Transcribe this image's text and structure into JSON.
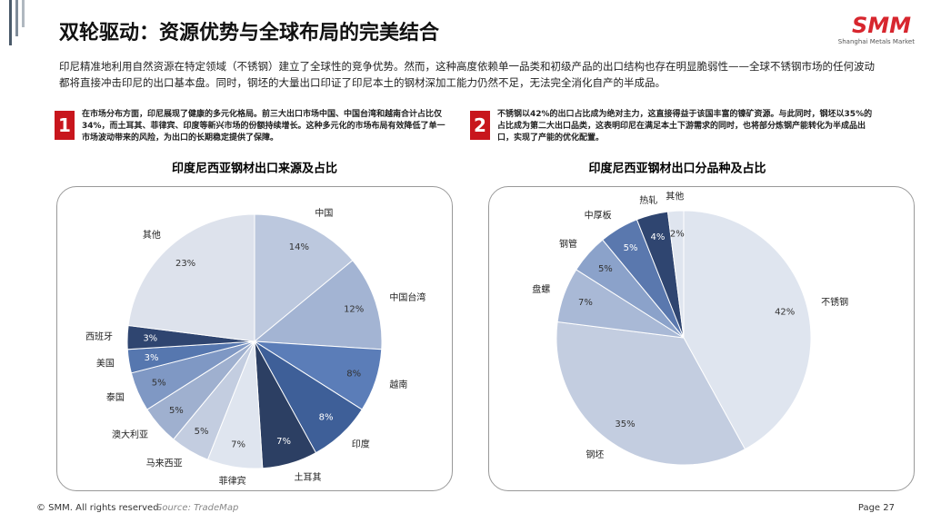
{
  "slide": {
    "title": "双轮驱动：资源优势与全球布局的完美结合",
    "logo": "SMM",
    "logo_sub": "Shanghai Metals Market",
    "intro": "印尼精准地利用自然资源在特定领域（不锈钢）建立了全球性的竞争优势。然而，这种高度依赖单一品类和初级产品的出口结构也存在明显脆弱性——全球不锈钢市场的任何波动都将直接冲击印尼的出口基本盘。同时，钢坯的大量出口印证了印尼本土的钢材深加工能力仍然不足，无法完全消化自产的半成品。",
    "points": [
      {
        "number": "1",
        "text": "在市场分布方面，印尼展现了健康的多元化格局。前三大出口市场中国、中国台湾和越南合计占比仅34%，而土耳其、菲律宾、印度等新兴市场的份额持续增长。这种多元化的市场布局有效降低了单一市场波动带来的风险，为出口的长期稳定提供了保障。"
      },
      {
        "number": "2",
        "text": "不锈钢以42%的出口占比成为绝对主力，这直接得益于该国丰富的镍矿资源。与此同时，钢坯以35%的占比成为第二大出口品类，这表明印尼在满足本土下游需求的同时，也将部分炼钢产能转化为半成品出口，实现了产能的优化配置。"
      }
    ],
    "footer": {
      "copyright": "© SMM. All rights reserved.",
      "source": "Source:  TradeMap",
      "page": "Page 27"
    }
  },
  "chart_data": [
    {
      "type": "pie",
      "title": "印度尼西亚钢材出口来源及占比",
      "categories": [
        "中国",
        "中国台湾",
        "越南",
        "印度",
        "土耳其",
        "菲律宾",
        "马来西亚",
        "澳大利亚",
        "泰国",
        "美国",
        "西班牙",
        "其他"
      ],
      "values": [
        14,
        12,
        8,
        8,
        7,
        7,
        5,
        5,
        5,
        3,
        3,
        23
      ],
      "value_labels": [
        "14%",
        "12%",
        "8%",
        "8%",
        "7%",
        "7%",
        "5%",
        "5%",
        "5%",
        "3%",
        "3%",
        "23%"
      ],
      "colors": [
        "#bcc8de",
        "#a3b4d3",
        "#5b7db8",
        "#3e5f98",
        "#2c3f63",
        "#dfe5ef",
        "#c3cde0",
        "#9fb0cf",
        "#7f98c4",
        "#5677af",
        "#2f4570",
        "#dde2ec"
      ]
    },
    {
      "type": "pie",
      "title": "印度尼西亚钢材出口分品种及占比",
      "categories": [
        "不锈钢",
        "钢坯",
        "盘螺",
        "钢管",
        "中厚板",
        "热轧",
        "其他"
      ],
      "values": [
        42,
        35,
        7,
        5,
        5,
        4,
        2
      ],
      "value_labels": [
        "42%",
        "35%",
        "7%",
        "5%",
        "5%",
        "4%",
        "2%"
      ],
      "colors": [
        "#dfe5ef",
        "#c3cde0",
        "#a9b9d6",
        "#8ba2ca",
        "#5a78ae",
        "#2f4570",
        "#dfe5ef"
      ]
    }
  ]
}
